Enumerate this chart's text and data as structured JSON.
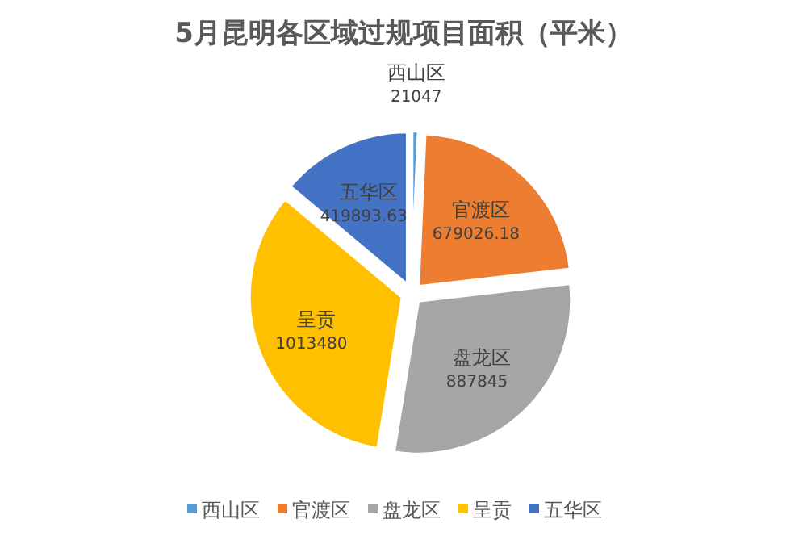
{
  "chart_data": {
    "type": "pie",
    "title": "5月昆明各区域过规项目面积（平米）",
    "categories": [
      "西山区",
      "官渡区",
      "盘龙区",
      "呈贡",
      "五华区"
    ],
    "values": [
      21047,
      679026.18,
      887845,
      1013480,
      419893.63
    ],
    "colors": [
      "#5b9bd5",
      "#ed7d31",
      "#a5a5a5",
      "#ffc000",
      "#4472c4"
    ],
    "data_labels": true,
    "legend": "bottom"
  }
}
